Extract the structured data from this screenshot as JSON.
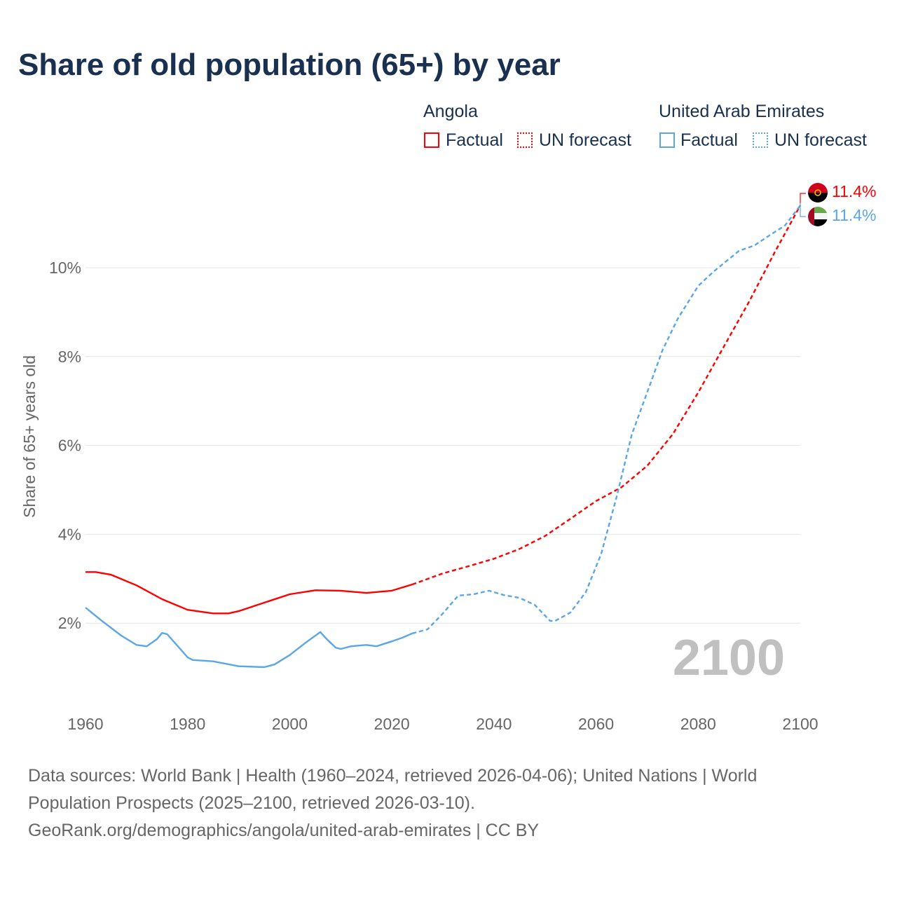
{
  "title": "Share of old population (65+) by year",
  "legend": {
    "groups": [
      {
        "name": "Angola",
        "color": "#ff0000",
        "factual": "Factual",
        "forecast": "UN forecast"
      },
      {
        "name": "United Arab Emirates",
        "color": "#5aa6e8",
        "factual": "Factual",
        "forecast": "UN forecast"
      }
    ]
  },
  "chart_data": {
    "type": "line",
    "title": "Share of old population (65+) by year",
    "ylabel": "Share of 65+ years old",
    "xlabel": "",
    "xlim": [
      1960,
      2100
    ],
    "ylim": [
      0,
      12
    ],
    "xticks": [
      1960,
      1980,
      2000,
      2020,
      2040,
      2060,
      2080,
      2100
    ],
    "xtick_labels": [
      "1960",
      "1980",
      "2000",
      "2020",
      "2040",
      "2060",
      "2080",
      "2100"
    ],
    "yticks": [
      2,
      4,
      6,
      8,
      10
    ],
    "ytick_labels": [
      "2%",
      "4%",
      "6%",
      "8%",
      "10%"
    ],
    "grid": true,
    "year_watermark": "2100",
    "series": [
      {
        "name": "Angola Factual",
        "color": "#ff0000",
        "dash": false,
        "x": [
          1960,
          1962,
          1965,
          1970,
          1975,
          1980,
          1985,
          1988,
          1990,
          1995,
          2000,
          2005,
          2010,
          2015,
          2020,
          2024
        ],
        "y": [
          3.15,
          3.15,
          3.09,
          2.85,
          2.54,
          2.3,
          2.22,
          2.22,
          2.27,
          2.46,
          2.65,
          2.74,
          2.73,
          2.68,
          2.73,
          2.87
        ]
      },
      {
        "name": "Angola UN forecast",
        "color": "#ff0000",
        "dash": true,
        "x": [
          2024,
          2030,
          2035,
          2040,
          2045,
          2050,
          2055,
          2060,
          2065,
          2070,
          2075,
          2080,
          2085,
          2090,
          2095,
          2100
        ],
        "y": [
          2.87,
          3.12,
          3.28,
          3.45,
          3.67,
          3.96,
          4.35,
          4.75,
          5.06,
          5.54,
          6.25,
          7.19,
          8.22,
          9.24,
          10.35,
          11.4
        ]
      },
      {
        "name": "United Arab Emirates Factual",
        "color": "#5aa6e8",
        "dash": false,
        "x": [
          1960,
          1963,
          1967,
          1970,
          1972,
          1974,
          1975,
          1976,
          1980,
          1981,
          1985,
          1990,
          1995,
          1997,
          2000,
          2003,
          2006,
          2007,
          2009,
          2010,
          2012,
          2015,
          2017,
          2020,
          2022,
          2024
        ],
        "y": [
          2.35,
          2.07,
          1.72,
          1.51,
          1.48,
          1.64,
          1.78,
          1.75,
          1.23,
          1.17,
          1.14,
          1.03,
          1.01,
          1.07,
          1.28,
          1.55,
          1.8,
          1.67,
          1.45,
          1.42,
          1.48,
          1.51,
          1.48,
          1.59,
          1.67,
          1.77
        ]
      },
      {
        "name": "United Arab Emirates UN forecast",
        "color": "#5aa6e8",
        "dash": true,
        "x": [
          2024,
          2027,
          2030,
          2033,
          2036,
          2039,
          2042,
          2045,
          2048,
          2051,
          2052,
          2055,
          2058,
          2061,
          2064,
          2067,
          2070,
          2073,
          2076,
          2080,
          2083,
          2088,
          2091,
          2094,
          2097,
          2100
        ],
        "y": [
          1.77,
          1.86,
          2.22,
          2.62,
          2.65,
          2.73,
          2.63,
          2.57,
          2.41,
          2.05,
          2.05,
          2.24,
          2.7,
          3.56,
          4.83,
          6.25,
          7.19,
          8.14,
          8.85,
          9.59,
          9.91,
          10.38,
          10.5,
          10.73,
          10.95,
          11.4
        ]
      }
    ],
    "end_labels": [
      {
        "country": "Angola",
        "text": "11.4%",
        "color": "#ff0000"
      },
      {
        "country": "United Arab Emirates",
        "text": "11.4%",
        "color": "#5aa6e8"
      }
    ]
  },
  "source": {
    "line1": "Data sources: World Bank | Health (1960–2024, retrieved 2026-04-06); United Nations | World Population Prospects (2025–2100, retrieved 2026-03-10).",
    "line2": "GeoRank.org/demographics/angola/united-arab-emirates | CC BY"
  }
}
